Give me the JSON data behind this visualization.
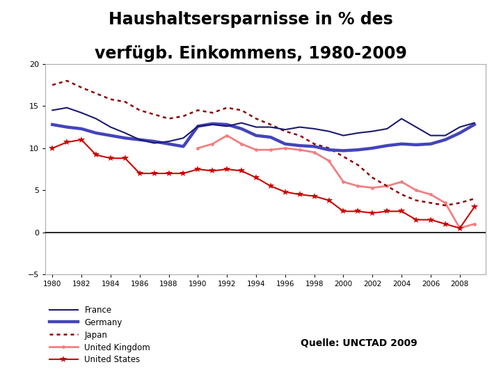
{
  "title_line1": "Haushaltsersparnisse in % des",
  "title_line2": "verfügb. Einkommens, 1980-2009",
  "source": "Quelle: UNCTAD 2009",
  "years": [
    1980,
    1981,
    1982,
    1983,
    1984,
    1985,
    1986,
    1987,
    1988,
    1989,
    1990,
    1991,
    1992,
    1993,
    1994,
    1995,
    1996,
    1997,
    1998,
    1999,
    2000,
    2001,
    2002,
    2003,
    2004,
    2005,
    2006,
    2007,
    2008,
    2009
  ],
  "france": [
    14.5,
    14.8,
    14.2,
    13.5,
    12.5,
    11.8,
    11.0,
    10.6,
    10.8,
    11.2,
    12.6,
    12.8,
    12.6,
    13.0,
    12.5,
    12.5,
    12.2,
    12.5,
    12.3,
    12.0,
    11.5,
    11.8,
    12.0,
    12.3,
    13.5,
    12.5,
    11.5,
    11.5,
    12.5,
    13.0
  ],
  "germany": [
    12.8,
    12.5,
    12.3,
    11.8,
    11.5,
    11.2,
    11.0,
    10.8,
    10.5,
    10.2,
    12.6,
    12.9,
    12.8,
    12.3,
    11.5,
    11.3,
    10.5,
    10.3,
    10.2,
    9.8,
    9.7,
    9.8,
    10.0,
    10.3,
    10.5,
    10.4,
    10.5,
    11.0,
    11.8,
    12.8
  ],
  "japan": [
    17.5,
    18.0,
    17.2,
    16.5,
    15.8,
    15.5,
    14.5,
    14.0,
    13.5,
    13.8,
    14.5,
    14.2,
    14.8,
    14.5,
    13.5,
    12.8,
    12.0,
    11.5,
    10.5,
    10.0,
    9.0,
    8.0,
    6.5,
    5.5,
    4.5,
    3.8,
    3.5,
    3.2,
    3.5,
    4.0
  ],
  "uk": [
    null,
    null,
    null,
    null,
    null,
    null,
    null,
    null,
    null,
    null,
    10.0,
    10.5,
    11.5,
    10.5,
    9.8,
    9.8,
    10.0,
    9.8,
    9.5,
    8.5,
    6.0,
    5.5,
    5.3,
    5.5,
    6.0,
    5.0,
    4.5,
    3.5,
    0.5,
    1.0
  ],
  "us": [
    10.0,
    10.7,
    11.0,
    9.2,
    8.8,
    8.8,
    7.0,
    7.0,
    7.0,
    7.0,
    7.5,
    7.3,
    7.5,
    7.3,
    6.5,
    5.5,
    4.8,
    4.5,
    4.3,
    3.8,
    2.5,
    2.5,
    2.3,
    2.5,
    2.5,
    1.5,
    1.5,
    1.0,
    0.5,
    3.0
  ],
  "france_color": "#1a1a6e",
  "germany_color": "#4444bb",
  "japan_color": "#8b0000",
  "uk_color": "#f08080",
  "us_color": "#cc0000",
  "ylim": [
    -5,
    20
  ],
  "yticks": [
    -5,
    0,
    5,
    10,
    15,
    20
  ],
  "xticks": [
    1980,
    1982,
    1984,
    1986,
    1988,
    1990,
    1992,
    1994,
    1996,
    1998,
    2000,
    2002,
    2004,
    2006,
    2008
  ]
}
